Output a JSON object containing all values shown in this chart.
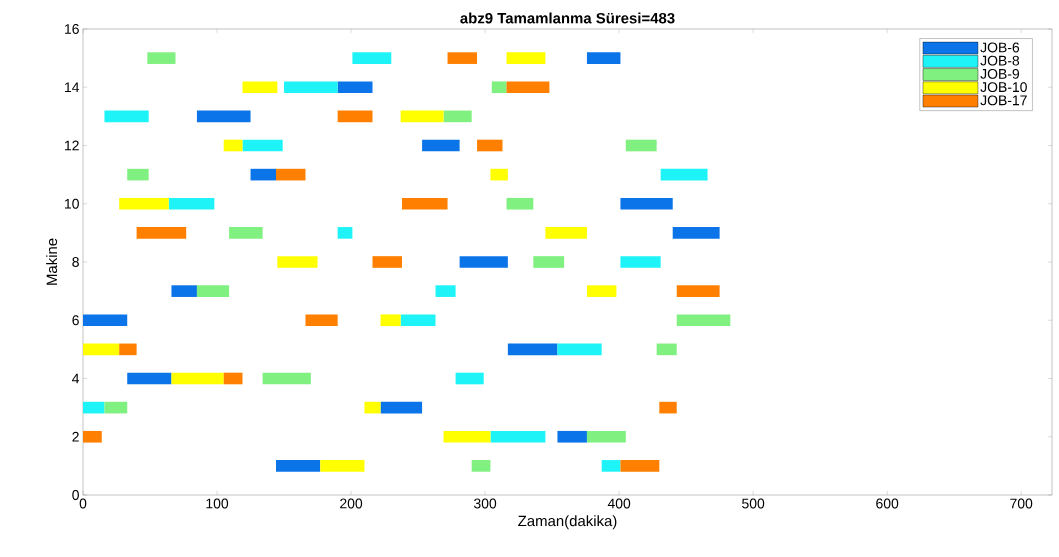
{
  "chart_data": {
    "type": "bar",
    "orientation": "horizontal",
    "title": "abz9 Tamamlanma Süresi=483",
    "xlabel": "Zaman(dakika)",
    "ylabel": "Makine",
    "x": [
      1,
      2,
      3,
      4,
      5,
      6,
      7,
      8,
      9,
      10,
      11,
      12,
      13,
      14,
      15
    ],
    "series": [
      {
        "name": "JOB-6",
        "color": "#0a74e8",
        "base": [
          144,
          354,
          222,
          33,
          317,
          0,
          66,
          281,
          440,
          401,
          125,
          253,
          85,
          190,
          376
        ],
        "values": [
          33,
          22,
          31,
          33,
          37,
          33,
          19,
          36,
          35,
          39,
          19,
          28,
          40,
          26,
          25
        ]
      },
      {
        "name": "JOB-8",
        "color": "#1ef4f8",
        "base": [
          387,
          304,
          0,
          278,
          354,
          237,
          263,
          401,
          190,
          64,
          431,
          119,
          16,
          150,
          201
        ],
        "values": [
          14,
          41,
          16,
          21,
          33,
          26,
          15,
          30,
          11,
          34,
          35,
          30,
          33,
          40,
          29
        ]
      },
      {
        "name": "JOB-9",
        "color": "#80f080",
        "base": [
          290,
          376,
          16,
          134,
          428,
          443,
          85,
          336,
          109,
          316,
          33,
          405,
          269,
          305,
          48
        ],
        "values": [
          14,
          29,
          17,
          36,
          15,
          40,
          24,
          23,
          25,
          20,
          16,
          23,
          21,
          11,
          21
        ]
      },
      {
        "name": "JOB-10",
        "color": "#ffff00",
        "base": [
          177,
          269,
          210,
          66,
          0,
          222,
          376,
          145,
          345,
          27,
          304,
          105,
          237,
          119,
          316
        ],
        "values": [
          33,
          35,
          12,
          39,
          27,
          15,
          22,
          30,
          31,
          37,
          13,
          14,
          32,
          26,
          29
        ]
      },
      {
        "name": "JOB-17",
        "color": "#ff8000",
        "base": [
          401,
          0,
          430,
          105,
          27,
          166,
          443,
          216,
          40,
          238,
          144,
          294,
          190,
          316,
          272
        ],
        "values": [
          29,
          14,
          13,
          14,
          13,
          24,
          32,
          22,
          37,
          34,
          22,
          19,
          26,
          32,
          22
        ]
      }
    ],
    "xlim": [
      0,
      723
    ],
    "xticks": [
      0,
      100,
      200,
      300,
      400,
      500,
      600,
      700
    ],
    "ylim": [
      0,
      16
    ],
    "yticks": [
      0,
      2,
      4,
      6,
      8,
      10,
      12,
      14,
      16
    ],
    "legend": "top right"
  }
}
